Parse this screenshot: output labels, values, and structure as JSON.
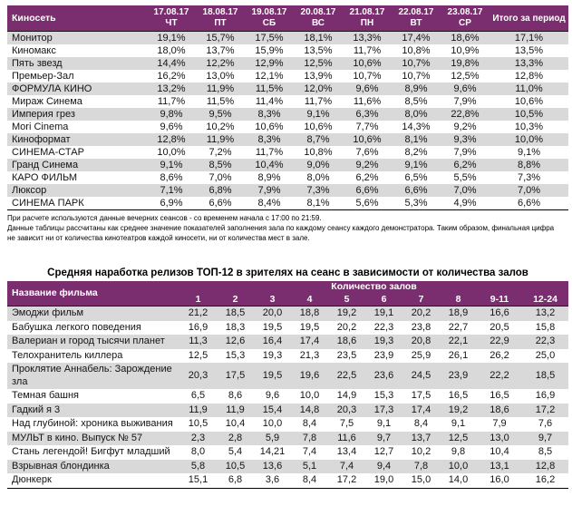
{
  "colors": {
    "header_bg": "#7B2E6F",
    "row_alt": "#D9D9D9",
    "row_base": "#FFFFFF",
    "header_text": "#FFFFFF",
    "body_text": "#141414"
  },
  "table1": {
    "name_header": "Киносеть",
    "total_header": "Итого за период",
    "date_columns": [
      {
        "date": "17.08.17",
        "day": "ЧТ"
      },
      {
        "date": "18.08.17",
        "day": "ПТ"
      },
      {
        "date": "19.08.17",
        "day": "СБ"
      },
      {
        "date": "20.08.17",
        "day": "ВС"
      },
      {
        "date": "21.08.17",
        "day": "ПН"
      },
      {
        "date": "22.08.17",
        "day": "ВТ"
      },
      {
        "date": "23.08.17",
        "day": "СР"
      }
    ],
    "rows": [
      {
        "name": "Монитор",
        "values": [
          "19,1%",
          "15,7%",
          "17,5%",
          "18,1%",
          "13,3%",
          "17,4%",
          "18,6%",
          "17,1%"
        ]
      },
      {
        "name": "Киномакс",
        "values": [
          "18,0%",
          "13,7%",
          "15,9%",
          "13,5%",
          "11,7%",
          "10,8%",
          "10,9%",
          "13,5%"
        ]
      },
      {
        "name": "Пять звезд",
        "values": [
          "14,4%",
          "12,2%",
          "12,9%",
          "12,5%",
          "10,6%",
          "10,7%",
          "19,8%",
          "13,3%"
        ]
      },
      {
        "name": "Премьер-Зал",
        "values": [
          "16,2%",
          "13,0%",
          "12,1%",
          "13,9%",
          "10,7%",
          "10,7%",
          "12,5%",
          "12,8%"
        ]
      },
      {
        "name": "ФОРМУЛА КИНО",
        "values": [
          "13,2%",
          "11,9%",
          "11,5%",
          "12,0%",
          "9,6%",
          "8,9%",
          "9,6%",
          "11,0%"
        ]
      },
      {
        "name": "Мираж Синема",
        "values": [
          "11,7%",
          "11,5%",
          "11,4%",
          "11,7%",
          "11,6%",
          "8,5%",
          "7,9%",
          "10,6%"
        ]
      },
      {
        "name": "Империя грез",
        "values": [
          "9,8%",
          "9,5%",
          "8,3%",
          "9,1%",
          "6,3%",
          "8,0%",
          "22,8%",
          "10,5%"
        ]
      },
      {
        "name": "Mori Cinema",
        "values": [
          "9,6%",
          "10,2%",
          "10,6%",
          "10,6%",
          "7,7%",
          "14,3%",
          "9,2%",
          "10,3%"
        ]
      },
      {
        "name": "Киноформат",
        "values": [
          "12,8%",
          "11,9%",
          "8,3%",
          "8,7%",
          "10,6%",
          "8,1%",
          "9,3%",
          "10,0%"
        ]
      },
      {
        "name": "СИНЕМА-СТАР",
        "values": [
          "10,0%",
          "7,2%",
          "11,7%",
          "10,8%",
          "7,6%",
          "8,2%",
          "7,9%",
          "9,1%"
        ]
      },
      {
        "name": "Гранд Синема",
        "values": [
          "9,1%",
          "8,5%",
          "10,4%",
          "9,0%",
          "9,2%",
          "9,1%",
          "6,2%",
          "8,8%"
        ]
      },
      {
        "name": "КАРО ФИЛЬМ",
        "values": [
          "8,6%",
          "7,0%",
          "8,9%",
          "8,0%",
          "6,2%",
          "6,5%",
          "5,5%",
          "7,3%"
        ]
      },
      {
        "name": "Люксор",
        "values": [
          "7,1%",
          "6,8%",
          "7,9%",
          "7,3%",
          "6,6%",
          "6,6%",
          "7,0%",
          "7,0%"
        ]
      },
      {
        "name": "СИНЕМА ПАРК",
        "values": [
          "6,9%",
          "6,6%",
          "8,4%",
          "8,1%",
          "5,6%",
          "5,3%",
          "4,9%",
          "6,6%"
        ]
      }
    ]
  },
  "footnotes": [
    "При расчете используются данные вечерних сеансов - со временем начала с 17:00 по 21:59.",
    "Данные таблицы рассчитаны как среднее значение показателей заполнения зала по каждому сеансу каждого демонстратора. Таким образом, финальная цифра не зависит ни от количества кинотеатров каждой киносети, ни от количества мест в зале."
  ],
  "table2": {
    "title": "Средняя наработка релизов ТОП-12 в зрителях на сеанс в зависимости от количества залов",
    "name_header": "Название фильма",
    "group_header": "Количество залов",
    "columns": [
      "1",
      "2",
      "3",
      "4",
      "5",
      "6",
      "7",
      "8",
      "9-11",
      "12-24"
    ],
    "rows": [
      {
        "name": "Эмоджи фильм",
        "values": [
          "21,2",
          "18,5",
          "20,0",
          "18,8",
          "19,2",
          "19,1",
          "20,2",
          "18,9",
          "16,6",
          "13,2"
        ]
      },
      {
        "name": "Бабушка легкого поведения",
        "values": [
          "16,9",
          "18,3",
          "19,5",
          "19,5",
          "20,2",
          "22,3",
          "23,8",
          "22,7",
          "20,5",
          "15,8"
        ]
      },
      {
        "name": "Валериан и город тысячи планет",
        "values": [
          "11,3",
          "12,6",
          "16,4",
          "17,4",
          "18,6",
          "19,3",
          "20,8",
          "22,1",
          "22,9",
          "22,3"
        ]
      },
      {
        "name": "Телохранитель киллера",
        "values": [
          "12,5",
          "15,3",
          "19,3",
          "21,3",
          "23,5",
          "23,9",
          "25,9",
          "26,1",
          "26,2",
          "25,0"
        ]
      },
      {
        "name": "Проклятие Аннабель: Зарождение зла",
        "values": [
          "20,3",
          "17,5",
          "19,5",
          "19,6",
          "22,5",
          "23,6",
          "24,5",
          "23,9",
          "22,2",
          "18,5"
        ]
      },
      {
        "name": "Темная башня",
        "values": [
          "6,5",
          "8,6",
          "9,6",
          "10,0",
          "14,9",
          "15,3",
          "17,5",
          "16,5",
          "16,5",
          "16,9"
        ]
      },
      {
        "name": "Гадкий я 3",
        "values": [
          "11,9",
          "11,9",
          "15,4",
          "14,8",
          "20,3",
          "17,3",
          "17,4",
          "19,2",
          "18,6",
          "17,2"
        ]
      },
      {
        "name": "Над глубиной: хроника выживания",
        "values": [
          "10,5",
          "10,4",
          "10,0",
          "8,4",
          "7,5",
          "9,1",
          "8,4",
          "9,1",
          "7,9",
          "7,6"
        ]
      },
      {
        "name": "МУЛЬТ в кино. Выпуск № 57",
        "values": [
          "2,3",
          "2,8",
          "5,9",
          "7,8",
          "11,6",
          "9,7",
          "13,7",
          "12,5",
          "13,0",
          "9,7"
        ]
      },
      {
        "name": "Стань легендой! Бигфут младший",
        "values": [
          "8,0",
          "5,4",
          "14,21",
          "7,4",
          "13,4",
          "12,7",
          "10,2",
          "9,8",
          "10,4",
          "8,5"
        ]
      },
      {
        "name": "Взрывная блондинка",
        "values": [
          "5,8",
          "10,5",
          "13,6",
          "5,1",
          "7,4",
          "9,4",
          "7,8",
          "10,0",
          "13,1",
          "12,8"
        ]
      },
      {
        "name": "Дюнкерк",
        "values": [
          "15,1",
          "6,8",
          "3,6",
          "8,4",
          "17,2",
          "19,0",
          "15,0",
          "14,0",
          "16,0",
          "16,2"
        ]
      }
    ]
  }
}
